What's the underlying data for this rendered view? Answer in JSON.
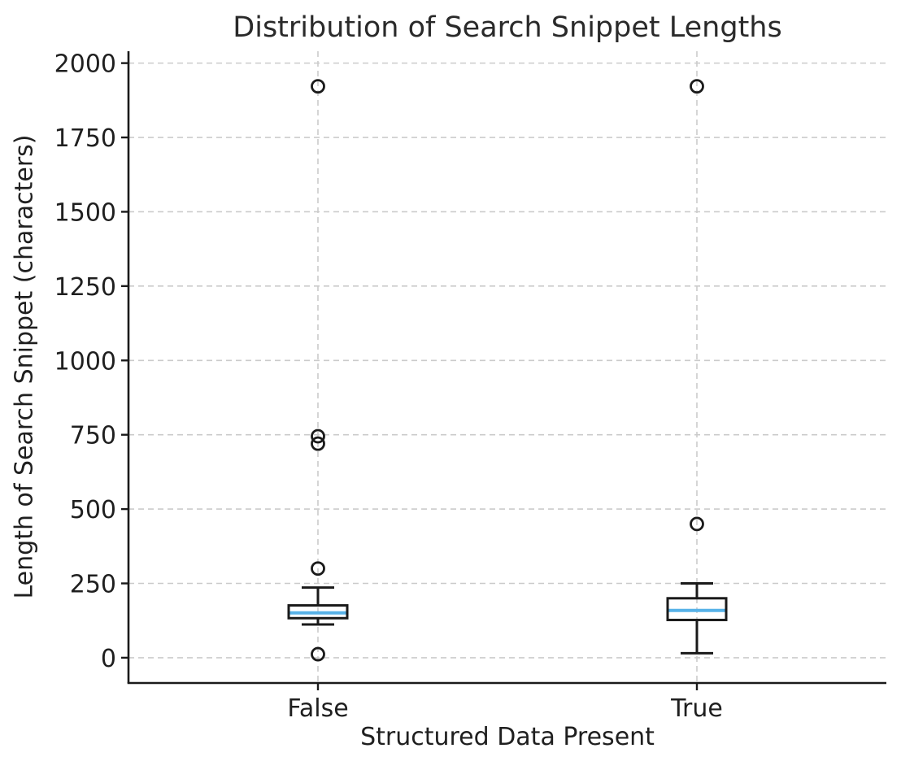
{
  "chart_data": {
    "type": "boxplot",
    "title": "Distribution of Search Snippet Lengths",
    "xlabel": "Structured Data Present",
    "ylabel": "Length of Search Snippet (characters)",
    "categories": [
      "False",
      "True"
    ],
    "y_ticks": [
      0,
      250,
      500,
      750,
      1000,
      1250,
      1500,
      1750,
      2000
    ],
    "ylim": [
      -85,
      2040
    ],
    "grid": true,
    "grid_style": "dashed",
    "legend": "none",
    "series": [
      {
        "name": "False",
        "whisker_low": 112,
        "q1": 133,
        "median": 151,
        "q3": 176,
        "whisker_high": 236,
        "outliers": [
          12,
          300,
          720,
          745,
          1922
        ]
      },
      {
        "name": "True",
        "whisker_low": 15,
        "q1": 127,
        "median": 159,
        "q3": 200,
        "whisker_high": 250,
        "outliers": [
          450,
          1922
        ]
      }
    ],
    "colors": {
      "box_edge": "#1a1a1a",
      "median_line": "#57b2e8",
      "gridline": "#cbcbcb",
      "spine": "#1a1a1a",
      "text": "#1f1f1f",
      "background": "#ffffff"
    }
  }
}
